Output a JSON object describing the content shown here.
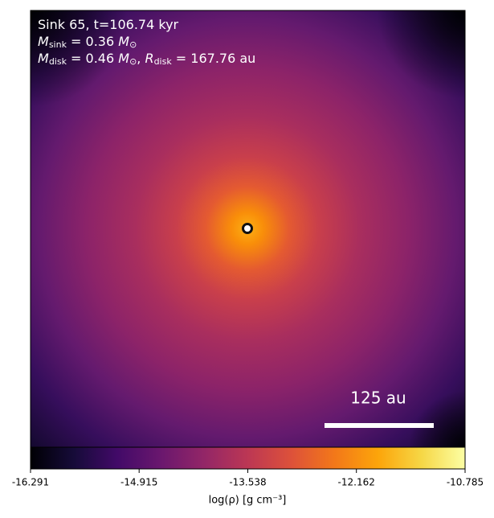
{
  "chart_data": {
    "type": "density_map",
    "colormap": "inferno",
    "annotation_lines": [
      [
        {
          "text": "Sink 65, t=106.74 kyr"
        }
      ],
      [
        {
          "text": "M",
          "style": "italic"
        },
        {
          "text": "sink",
          "style": "sub"
        },
        {
          "text": " = 0.36 "
        },
        {
          "text": "M",
          "style": "italic"
        },
        {
          "text": "⊙",
          "style": "sub"
        }
      ],
      [
        {
          "text": "M",
          "style": "italic"
        },
        {
          "text": "disk",
          "style": "sub"
        },
        {
          "text": " = 0.46 "
        },
        {
          "text": "M",
          "style": "italic"
        },
        {
          "text": "⊙",
          "style": "sub"
        },
        {
          "text": ", "
        },
        {
          "text": "R",
          "style": "italic"
        },
        {
          "text": "disk",
          "style": "sub"
        },
        {
          "text": " = 167.76 au"
        }
      ]
    ],
    "scale_bar_label": "125 au",
    "colorbar": {
      "label": "log(ρ) [g cm⁻³]",
      "lim": [
        -16.291,
        -10.785
      ],
      "ticks": [
        -16.291,
        -14.915,
        -13.538,
        -12.162,
        -10.785
      ]
    }
  }
}
